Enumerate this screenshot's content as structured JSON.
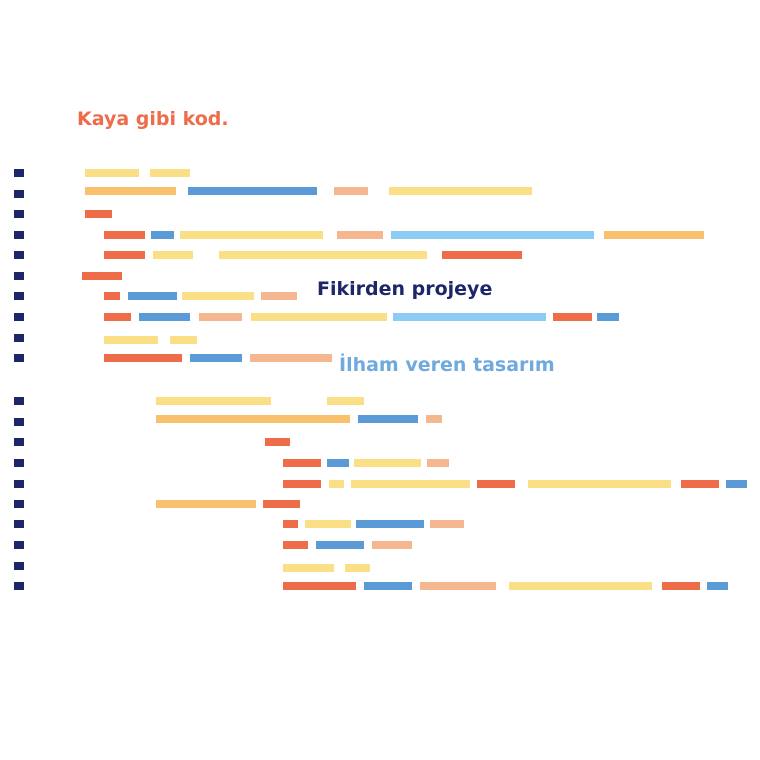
{
  "tagline": "Kaya gibi kod.",
  "heading_1": "Fikirden projeye",
  "heading_2": "İlham veren tasarım",
  "colors": {
    "orange": "#ef6c4b",
    "blue": "#5a9ad6",
    "light_blue": "#8ccbf3",
    "yellow": "#fbdf86",
    "amber": "#f9c06d",
    "peach": "#f4b78f",
    "navy": "#1c2668",
    "tagline": "#ef6c4b",
    "heading_1": "#1c2668",
    "heading_2": "#6fa9de"
  },
  "icons": {
    "bullet": "square-bullet-icon"
  }
}
